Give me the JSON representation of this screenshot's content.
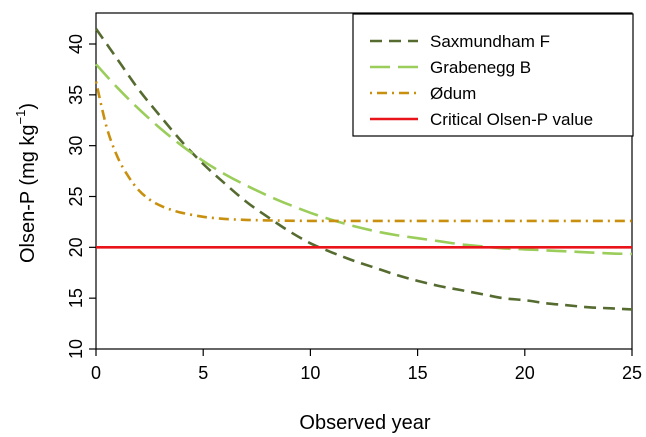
{
  "chart_data": {
    "type": "line",
    "title": "",
    "xlabel": "Observed year",
    "ylabel": {
      "main": "Olsen-P (mg kg",
      "superscript": "−1",
      "close": ")"
    },
    "xlim": [
      0,
      25
    ],
    "ylim": [
      10,
      42
    ],
    "x_ticks": [
      "0",
      "5",
      "10",
      "15",
      "20",
      "25"
    ],
    "y_ticks": [
      "10",
      "15",
      "20",
      "25",
      "30",
      "35",
      "40"
    ],
    "grid": false,
    "legend_position": "top-right",
    "series": [
      {
        "name": "Saxmundham F",
        "color": "#556b2f",
        "dash": "dashed",
        "x": [
          0,
          1,
          2,
          3,
          4,
          5,
          6,
          7,
          8,
          9,
          10,
          11,
          12,
          13,
          14,
          15,
          16,
          17,
          18,
          19,
          20,
          21,
          22,
          23,
          24,
          25
        ],
        "y": [
          41.5,
          38.5,
          35.5,
          32.9,
          30.4,
          28.2,
          26.3,
          24.5,
          23.0,
          21.6,
          20.4,
          19.5,
          18.7,
          18.0,
          17.3,
          16.7,
          16.2,
          15.8,
          15.4,
          15.0,
          14.8,
          14.5,
          14.3,
          14.1,
          14.0,
          13.9
        ]
      },
      {
        "name": "Grabenegg B",
        "color": "#9acd5a",
        "dash": "longdash",
        "x": [
          0,
          1,
          2,
          3,
          4,
          5,
          6,
          7,
          8,
          9,
          10,
          11,
          12,
          13,
          14,
          15,
          16,
          17,
          18,
          19,
          20,
          21,
          22,
          23,
          24,
          25
        ],
        "y": [
          38.0,
          35.7,
          33.6,
          31.7,
          30.0,
          28.5,
          27.2,
          26.1,
          25.1,
          24.2,
          23.4,
          22.7,
          22.1,
          21.6,
          21.2,
          20.9,
          20.6,
          20.3,
          20.1,
          19.9,
          19.8,
          19.7,
          19.6,
          19.5,
          19.4,
          19.35
        ]
      },
      {
        "name": "Ødum",
        "color": "#c8900e",
        "dash": "dotdash",
        "x": [
          0,
          0.5,
          1,
          1.5,
          2,
          2.5,
          3,
          3.5,
          4,
          5,
          6,
          7,
          8,
          10,
          12,
          15,
          20,
          25
        ],
        "y": [
          36.3,
          31.8,
          28.9,
          27.0,
          25.6,
          24.7,
          24.1,
          23.7,
          23.4,
          23.0,
          22.8,
          22.7,
          22.65,
          22.6,
          22.6,
          22.6,
          22.6,
          22.6
        ]
      },
      {
        "name": "Critical Olsen-P value",
        "color": "#e8141a",
        "dash": "solid",
        "x": [
          0,
          25
        ],
        "y": [
          20,
          20
        ]
      }
    ]
  }
}
